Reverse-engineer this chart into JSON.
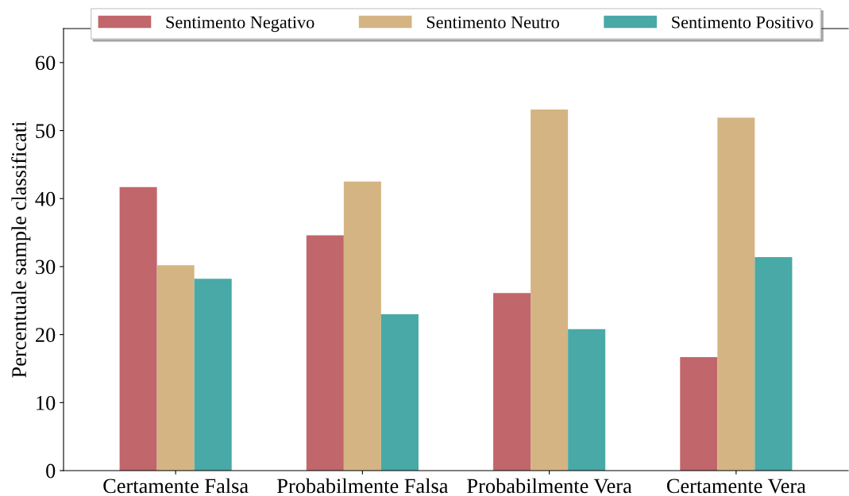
{
  "chart_data": {
    "type": "bar",
    "ylabel": "Percentuale sample classificati",
    "categories": [
      "Certamente Falsa",
      "Probabilmente Falsa",
      "Probabilmente Vera",
      "Certamente Vera"
    ],
    "series": [
      {
        "name": "Sentimento Negativo",
        "color": "#c1666b",
        "values": [
          41.7,
          34.6,
          26.1,
          16.7
        ]
      },
      {
        "name": "Sentimento Neutro",
        "color": "#d4b483",
        "values": [
          30.2,
          42.5,
          53.1,
          51.9
        ]
      },
      {
        "name": "Sentimento Positivo",
        "color": "#48a9a6",
        "values": [
          28.2,
          23.0,
          20.8,
          31.4
        ]
      }
    ],
    "ylim": [
      0,
      65
    ],
    "yticks": [
      0,
      10,
      20,
      30,
      40,
      50,
      60
    ],
    "grid": false,
    "legend": "top"
  }
}
